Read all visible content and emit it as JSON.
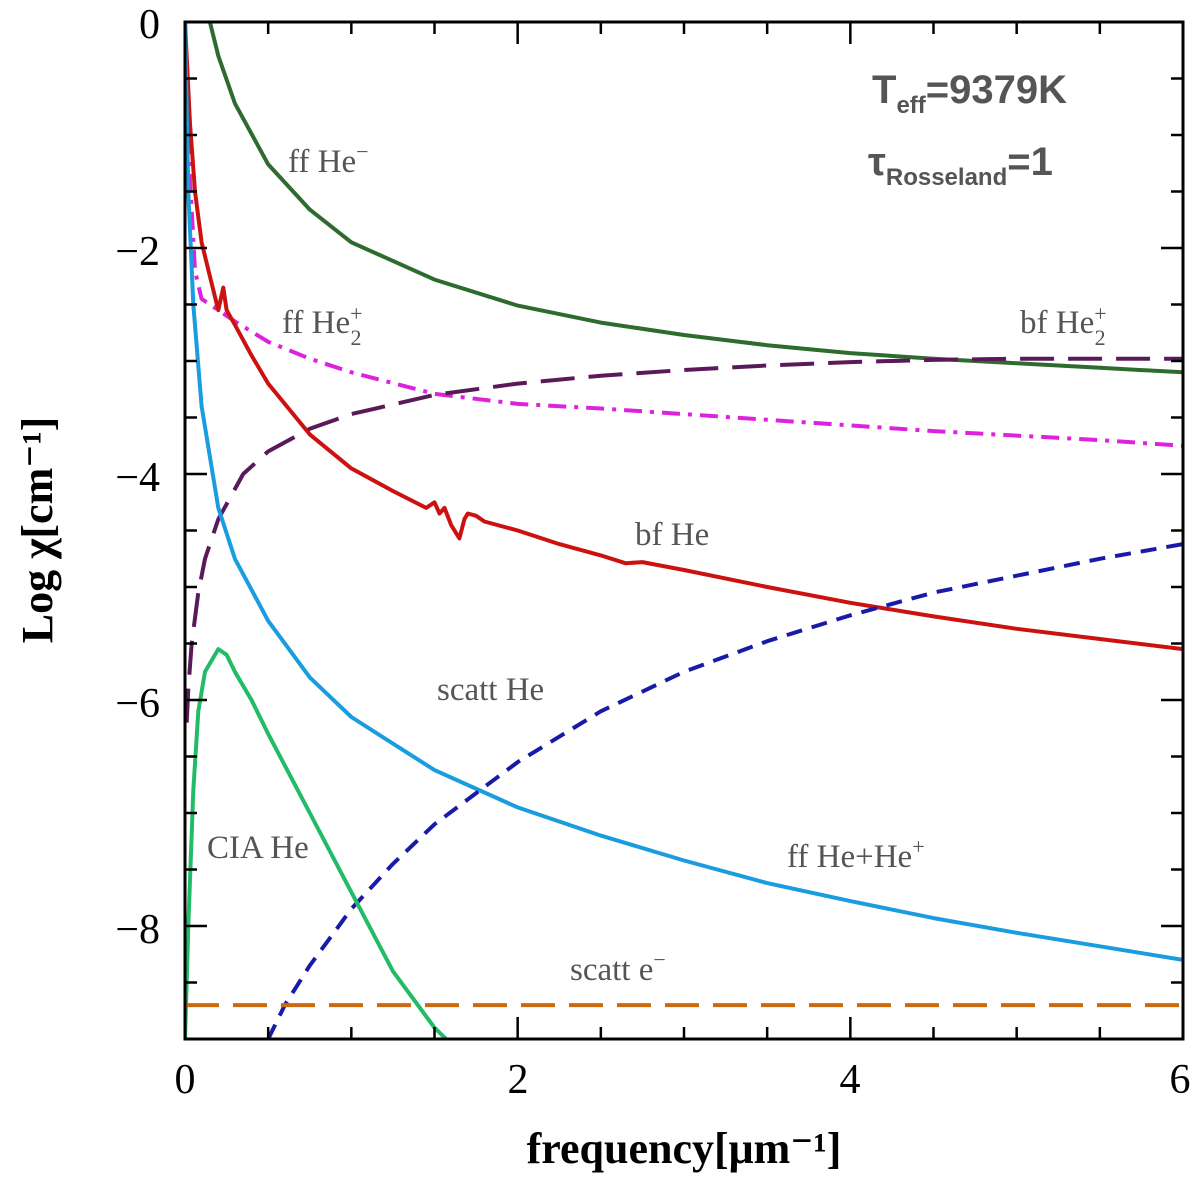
{
  "chart_data": {
    "type": "line",
    "title": "",
    "xlabel": "frequency[μm⁻¹]",
    "ylabel": "Log χ[cm⁻¹]",
    "xlim": [
      0,
      6
    ],
    "ylim": [
      -9,
      0
    ],
    "xticks": [
      "0",
      "2",
      "4",
      "6"
    ],
    "yticks": [
      "0",
      "−2",
      "−4",
      "−6",
      "−8"
    ],
    "header_text": {
      "teff_symbol": "T",
      "teff_sub": "eff",
      "teff_value": "=9379K",
      "tau_symbol": "τ",
      "tau_sub": "Rosseland",
      "tau_value": "=1"
    },
    "series": [
      {
        "name": "ff He⁻",
        "label_main": "ff  He",
        "label_sup": "−",
        "color": "#2e6b2e",
        "style": "solid",
        "x": [
          0.15,
          0.2,
          0.3,
          0.5,
          0.75,
          1.0,
          1.5,
          2.0,
          2.5,
          3.0,
          3.5,
          4.0,
          4.5,
          5.0,
          5.5,
          6.0
        ],
        "y": [
          0.0,
          -0.3,
          -0.72,
          -1.26,
          -1.66,
          -1.95,
          -2.28,
          -2.51,
          -2.66,
          -2.77,
          -2.86,
          -2.93,
          -2.98,
          -3.02,
          -3.06,
          -3.1
        ]
      },
      {
        "name": "ff He₂⁺",
        "label_main": "ff  He",
        "label_sub": "2",
        "label_sup": "+",
        "color": "#dd22dd",
        "style": "dashdot",
        "x": [
          0.0,
          0.03,
          0.06,
          0.1,
          0.15,
          0.2,
          0.3,
          0.5,
          0.75,
          1.0,
          1.5,
          2.0,
          2.5,
          3.0,
          3.5,
          4.0,
          4.5,
          5.0,
          5.5,
          6.0
        ],
        "y": [
          0.0,
          -1.4,
          -2.2,
          -2.45,
          -2.5,
          -2.55,
          -2.65,
          -2.83,
          -2.98,
          -3.1,
          -3.29,
          -3.38,
          -3.42,
          -3.47,
          -3.52,
          -3.57,
          -3.62,
          -3.66,
          -3.7,
          -3.75
        ]
      },
      {
        "name": "bf He₂⁺",
        "label_main": "bf  He",
        "label_sub": "2",
        "label_sup": "+",
        "color": "#5a1a5a",
        "style": "longdash",
        "x": [
          0.01,
          0.02,
          0.04,
          0.08,
          0.12,
          0.2,
          0.35,
          0.5,
          0.75,
          1.0,
          1.5,
          2.0,
          2.5,
          3.0,
          3.5,
          4.0,
          4.5,
          5.0,
          5.5,
          6.0
        ],
        "y": [
          -6.2,
          -5.9,
          -5.5,
          -5.05,
          -4.75,
          -4.4,
          -4.0,
          -3.8,
          -3.6,
          -3.47,
          -3.3,
          -3.2,
          -3.13,
          -3.08,
          -3.04,
          -3.01,
          -2.99,
          -2.98,
          -2.98,
          -2.98
        ]
      },
      {
        "name": "bf He",
        "label_main": "bf  He",
        "color": "#cc1111",
        "style": "solid",
        "x": [
          0.0,
          0.03,
          0.06,
          0.1,
          0.15,
          0.2,
          0.23,
          0.25,
          0.3,
          0.4,
          0.5,
          0.75,
          1.0,
          1.25,
          1.45,
          1.5,
          1.53,
          1.56,
          1.6,
          1.65,
          1.68,
          1.7,
          1.75,
          1.8,
          2.0,
          2.25,
          2.5,
          2.65,
          2.75,
          3.0,
          3.5,
          4.0,
          4.5,
          5.0,
          5.5,
          6.0
        ],
        "y": [
          0.0,
          -0.9,
          -1.5,
          -1.95,
          -2.25,
          -2.55,
          -2.35,
          -2.55,
          -2.68,
          -2.95,
          -3.2,
          -3.65,
          -3.95,
          -4.15,
          -4.3,
          -4.25,
          -4.35,
          -4.3,
          -4.45,
          -4.57,
          -4.4,
          -4.35,
          -4.37,
          -4.42,
          -4.5,
          -4.62,
          -4.72,
          -4.79,
          -4.78,
          -4.85,
          -5.0,
          -5.14,
          -5.26,
          -5.37,
          -5.46,
          -5.55
        ]
      },
      {
        "name": "scatt He",
        "label_main": "scatt  He",
        "color": "#1a9de0",
        "style": "solid",
        "x": [
          0.0,
          0.02,
          0.05,
          0.1,
          0.2,
          0.3,
          0.5,
          0.75,
          1.0,
          1.5,
          2.0,
          2.5,
          3.0,
          3.5,
          4.0,
          4.5,
          5.0,
          5.5,
          6.0
        ],
        "y": [
          0.0,
          -1.5,
          -2.5,
          -3.4,
          -4.3,
          -4.75,
          -5.3,
          -5.8,
          -6.15,
          -6.62,
          -6.95,
          -7.2,
          -7.42,
          -7.62,
          -7.78,
          -7.93,
          -8.06,
          -8.18,
          -8.3
        ]
      },
      {
        "name": "ff He+He⁺",
        "label_main": "ff  He+He",
        "label_sup": "+",
        "color": "#1a1aaa",
        "style": "shortdash",
        "x": [
          0.5,
          0.6,
          0.75,
          1.0,
          1.25,
          1.5,
          2.0,
          2.5,
          3.0,
          3.5,
          4.0,
          4.5,
          5.0,
          5.5,
          6.0
        ],
        "y": [
          -9.0,
          -8.7,
          -8.35,
          -7.85,
          -7.45,
          -7.1,
          -6.55,
          -6.1,
          -5.75,
          -5.48,
          -5.25,
          -5.05,
          -4.9,
          -4.75,
          -4.62
        ]
      },
      {
        "name": "CIA He",
        "label_main": "CIA  He",
        "color": "#22bb66",
        "style": "solid",
        "x": [
          0.0,
          0.02,
          0.05,
          0.08,
          0.12,
          0.2,
          0.25,
          0.3,
          0.4,
          0.5,
          0.75,
          1.0,
          1.25,
          1.5,
          1.57
        ],
        "y": [
          -9.0,
          -8.0,
          -6.8,
          -6.1,
          -5.75,
          -5.55,
          -5.6,
          -5.75,
          -6.0,
          -6.3,
          -7.0,
          -7.7,
          -8.4,
          -8.9,
          -9.0
        ]
      },
      {
        "name": "scatt e⁻",
        "label_main": "scatt  e",
        "label_sup": "−",
        "color": "#cc6a10",
        "style": "longdash",
        "x": [
          0.0,
          6.0
        ],
        "y": [
          -8.7,
          -8.7
        ]
      }
    ]
  }
}
